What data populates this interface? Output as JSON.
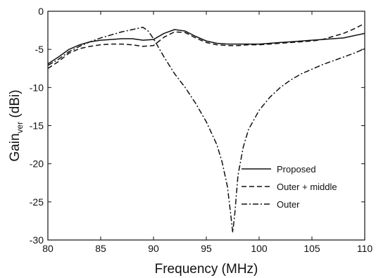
{
  "chart_data": {
    "type": "line",
    "xlabel": "Frequency (MHz)",
    "ylabel_main": "Gain",
    "ylabel_sub": "ver",
    "ylabel_unit": " (dBi)",
    "xlim": [
      80,
      110
    ],
    "ylim": [
      -30,
      0
    ],
    "x_ticks": [
      80,
      85,
      90,
      95,
      100,
      105,
      110
    ],
    "y_ticks": [
      0,
      -5,
      -10,
      -15,
      -20,
      -25,
      -30
    ],
    "y_tick_labels": [
      "0",
      "-5",
      "-10",
      "-15",
      "-20",
      "-25",
      "-30"
    ],
    "x_tick_labels": [
      "80",
      "85",
      "90",
      "95",
      "100",
      "105",
      "110"
    ],
    "grid": false,
    "legend_position": "bottom-center",
    "series": [
      {
        "name": "Proposed",
        "dash": "solid",
        "x": [
          80,
          81,
          82,
          83,
          84,
          85,
          86,
          87,
          88,
          89,
          90,
          91,
          92,
          93,
          94,
          95,
          96,
          97,
          98,
          99,
          100,
          101,
          102,
          103,
          104,
          105,
          106,
          107,
          108,
          109,
          110
        ],
        "y": [
          -6.9,
          -6.0,
          -5.0,
          -4.4,
          -4.0,
          -3.8,
          -3.7,
          -3.6,
          -3.6,
          -3.8,
          -3.7,
          -2.9,
          -2.4,
          -2.6,
          -3.3,
          -3.9,
          -4.2,
          -4.3,
          -4.3,
          -4.3,
          -4.3,
          -4.2,
          -4.1,
          -4.0,
          -3.9,
          -3.8,
          -3.7,
          -3.6,
          -3.5,
          -3.2,
          -2.9
        ]
      },
      {
        "name": "Outer + middle",
        "dash": "dashed",
        "x": [
          80,
          81,
          82,
          83,
          84,
          85,
          86,
          87,
          88,
          89,
          90,
          91,
          92,
          93,
          94,
          95,
          96,
          97,
          98,
          99,
          100,
          101,
          102,
          103,
          104,
          105,
          106,
          107,
          108,
          109,
          110
        ],
        "y": [
          -7.5,
          -6.6,
          -5.5,
          -4.9,
          -4.6,
          -4.4,
          -4.3,
          -4.3,
          -4.4,
          -4.6,
          -4.5,
          -3.4,
          -2.7,
          -2.8,
          -3.5,
          -4.1,
          -4.4,
          -4.5,
          -4.5,
          -4.4,
          -4.4,
          -4.3,
          -4.2,
          -4.1,
          -4.0,
          -3.9,
          -3.7,
          -3.3,
          -2.9,
          -2.3,
          -1.6
        ]
      },
      {
        "name": "Outer",
        "dash": "dashdot",
        "x": [
          80,
          81,
          82,
          83,
          84,
          85,
          86,
          87,
          88,
          89,
          89.5,
          90,
          90.5,
          91,
          92,
          93,
          94,
          95,
          96,
          96.5,
          97,
          97.3,
          97.5,
          97.7,
          98,
          98.5,
          99,
          100,
          101,
          102,
          103,
          104,
          105,
          106,
          107,
          108,
          109,
          110
        ],
        "y": [
          -7.1,
          -6.3,
          -5.3,
          -4.6,
          -4.0,
          -3.5,
          -3.1,
          -2.7,
          -2.4,
          -2.1,
          -2.6,
          -3.6,
          -4.8,
          -6.0,
          -8.2,
          -10.0,
          -12.1,
          -14.5,
          -17.5,
          -19.8,
          -23.0,
          -26.5,
          -29.0,
          -26.5,
          -21.5,
          -17.8,
          -15.5,
          -13.0,
          -11.3,
          -10.0,
          -9.0,
          -8.2,
          -7.6,
          -7.0,
          -6.5,
          -6.0,
          -5.5,
          -4.9
        ]
      }
    ]
  }
}
